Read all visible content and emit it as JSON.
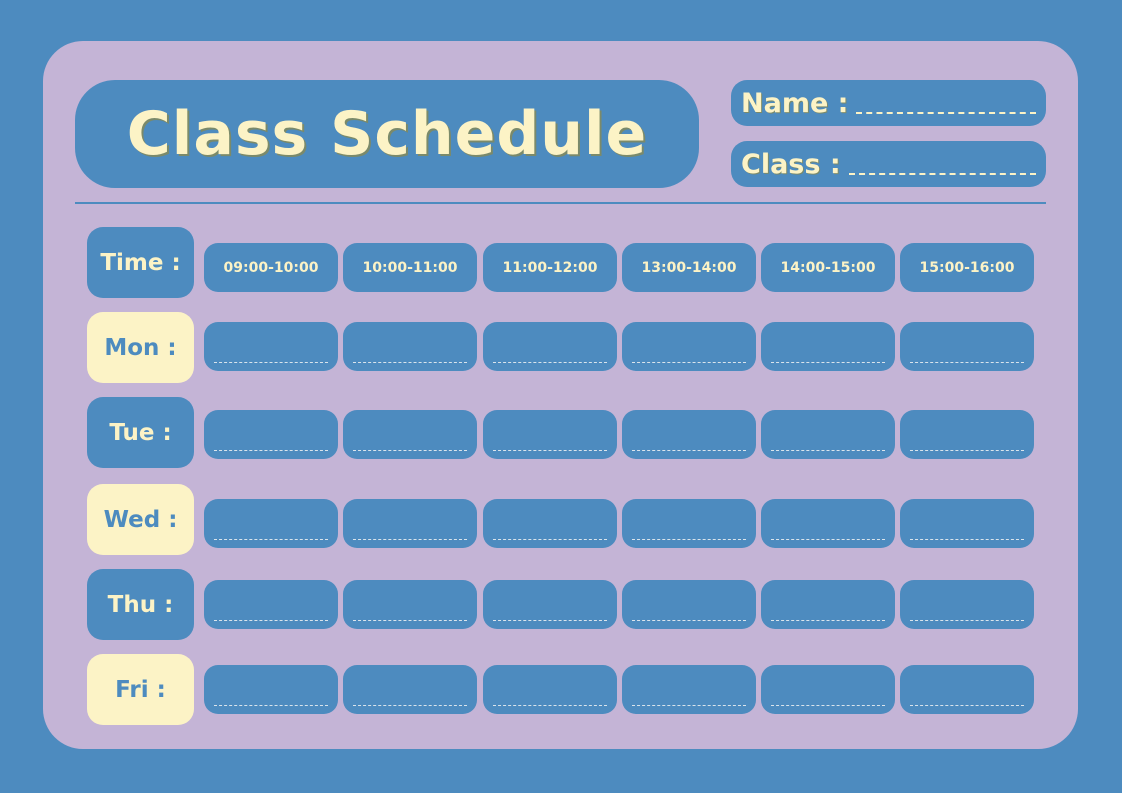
{
  "title": "Class Schedule",
  "fields": {
    "name_label": "Name :",
    "class_label": "Class :"
  },
  "time_label": "Time :",
  "time_slots": [
    "09:00-10:00",
    "10:00-11:00",
    "11:00-12:00",
    "13:00-14:00",
    "14:00-15:00",
    "15:00-16:00"
  ],
  "days": [
    "Mon :",
    "Tue :",
    "Wed :",
    "Thu :",
    "Fri :"
  ],
  "colors": {
    "background": "#4d8bbf",
    "card": "#c4b4d6",
    "accent": "#fcf3c6"
  }
}
